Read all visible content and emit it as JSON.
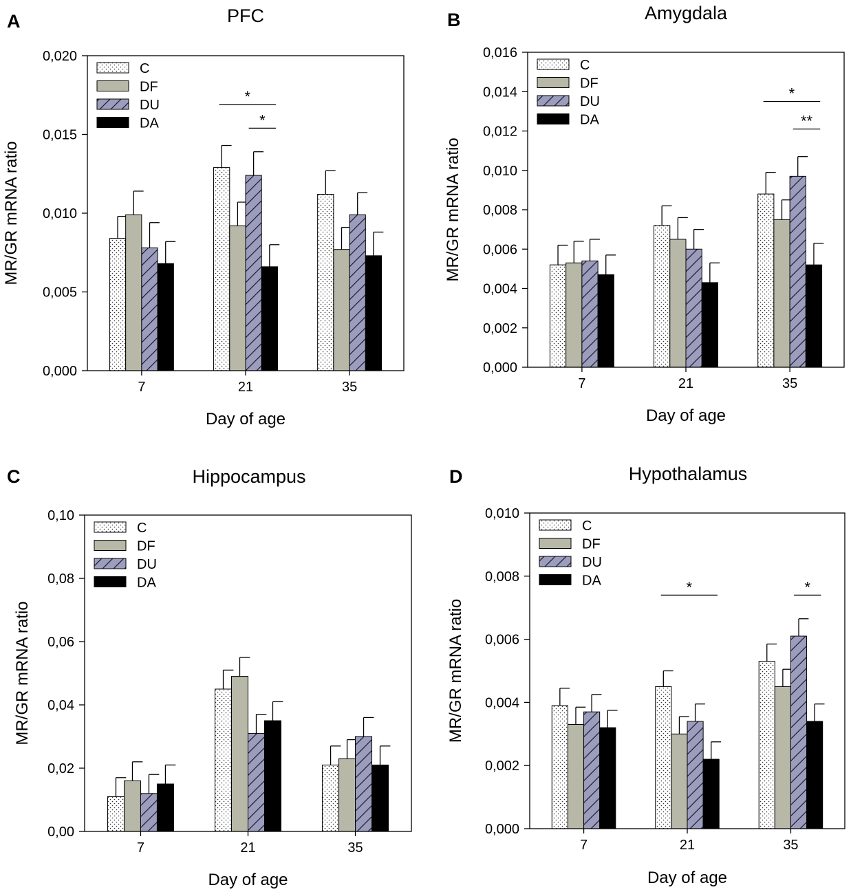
{
  "chart_data": [
    {
      "type": "bar",
      "panel": "A",
      "title": "PFC",
      "xlabel": "Day of age",
      "ylabel": "MR/GR mRNA ratio",
      "ylim": [
        0,
        0.02
      ],
      "yticks": [
        0,
        0.005,
        0.01,
        0.015,
        0.02
      ],
      "ytick_labels": [
        "0,000",
        "0,005",
        "0,010",
        "0,015",
        "0,020"
      ],
      "categories": [
        "7",
        "21",
        "35"
      ],
      "series": [
        {
          "name": "C",
          "values": [
            0.0084,
            0.0129,
            0.0112
          ],
          "errors": [
            0.0014,
            0.0014,
            0.0015
          ]
        },
        {
          "name": "DF",
          "values": [
            0.0099,
            0.0092,
            0.0077
          ],
          "errors": [
            0.0015,
            0.0015,
            0.0014
          ]
        },
        {
          "name": "DU",
          "values": [
            0.0078,
            0.0124,
            0.0099
          ],
          "errors": [
            0.0016,
            0.0015,
            0.0014
          ]
        },
        {
          "name": "DA",
          "values": [
            0.0068,
            0.0066,
            0.0073
          ],
          "errors": [
            0.0014,
            0.0014,
            0.0015
          ]
        }
      ],
      "significance": [
        {
          "category": 1,
          "from_series": 0,
          "to_series": 3,
          "label": "*",
          "level": 0.0169
        },
        {
          "category": 1,
          "from_series": 2,
          "to_series": 3,
          "label": "*",
          "level": 0.0154
        }
      ],
      "legend_position": "top-left"
    },
    {
      "type": "bar",
      "panel": "B",
      "title": "Amygdala",
      "xlabel": "Day of age",
      "ylabel": "MR/GR mRNA ratio",
      "ylim": [
        0,
        0.016
      ],
      "yticks": [
        0,
        0.002,
        0.004,
        0.006,
        0.008,
        0.01,
        0.012,
        0.014,
        0.016
      ],
      "ytick_labels": [
        "0,000",
        "0,002",
        "0,004",
        "0,006",
        "0,008",
        "0,010",
        "0,012",
        "0,014",
        "0,016"
      ],
      "categories": [
        "7",
        "21",
        "35"
      ],
      "series": [
        {
          "name": "C",
          "values": [
            0.0052,
            0.0072,
            0.0088
          ],
          "errors": [
            0.001,
            0.001,
            0.0011
          ]
        },
        {
          "name": "DF",
          "values": [
            0.0053,
            0.0065,
            0.0075
          ],
          "errors": [
            0.0011,
            0.0011,
            0.001
          ]
        },
        {
          "name": "DU",
          "values": [
            0.0054,
            0.006,
            0.0097
          ],
          "errors": [
            0.0011,
            0.001,
            0.001
          ]
        },
        {
          "name": "DA",
          "values": [
            0.0047,
            0.0043,
            0.0052
          ],
          "errors": [
            0.001,
            0.001,
            0.0011
          ]
        }
      ],
      "significance": [
        {
          "category": 2,
          "from_series": 0,
          "to_series": 3,
          "label": "*",
          "level": 0.0135
        },
        {
          "category": 2,
          "from_series": 2,
          "to_series": 3,
          "label": "**",
          "level": 0.0121
        }
      ],
      "legend_position": "top-left"
    },
    {
      "type": "bar",
      "panel": "C",
      "title": "Hippocampus",
      "xlabel": "Day of age",
      "ylabel": "MR/GR mRNA ratio",
      "ylim": [
        0,
        0.1
      ],
      "yticks": [
        0,
        0.02,
        0.04,
        0.06,
        0.08,
        0.1
      ],
      "ytick_labels": [
        "0,00",
        "0,02",
        "0,04",
        "0,06",
        "0,08",
        "0,10"
      ],
      "categories": [
        "7",
        "21",
        "35"
      ],
      "series": [
        {
          "name": "C",
          "values": [
            0.011,
            0.045,
            0.021
          ],
          "errors": [
            0.006,
            0.006,
            0.006
          ]
        },
        {
          "name": "DF",
          "values": [
            0.016,
            0.049,
            0.023
          ],
          "errors": [
            0.006,
            0.006,
            0.006
          ]
        },
        {
          "name": "DU",
          "values": [
            0.012,
            0.031,
            0.03
          ],
          "errors": [
            0.006,
            0.006,
            0.006
          ]
        },
        {
          "name": "DA",
          "values": [
            0.015,
            0.035,
            0.021
          ],
          "errors": [
            0.006,
            0.006,
            0.006
          ]
        }
      ],
      "significance": [],
      "legend_position": "top-left"
    },
    {
      "type": "bar",
      "panel": "D",
      "title": "Hypothalamus",
      "xlabel": "Day of age",
      "ylabel": "MR/GR mRNA ratio",
      "ylim": [
        0,
        0.01
      ],
      "yticks": [
        0,
        0.002,
        0.004,
        0.006,
        0.008,
        0.01
      ],
      "ytick_labels": [
        "0,000",
        "0,002",
        "0,004",
        "0,006",
        "0,008",
        "0,010"
      ],
      "categories": [
        "7",
        "21",
        "35"
      ],
      "series": [
        {
          "name": "C",
          "values": [
            0.0039,
            0.0045,
            0.0053
          ],
          "errors": [
            0.00055,
            0.0005,
            0.00055
          ]
        },
        {
          "name": "DF",
          "values": [
            0.0033,
            0.003,
            0.0045
          ],
          "errors": [
            0.00055,
            0.00055,
            0.00055
          ]
        },
        {
          "name": "DU",
          "values": [
            0.0037,
            0.0034,
            0.0061
          ],
          "errors": [
            0.00055,
            0.00055,
            0.00055
          ]
        },
        {
          "name": "DA",
          "values": [
            0.0032,
            0.0022,
            0.0034
          ],
          "errors": [
            0.00055,
            0.00055,
            0.00055
          ]
        }
      ],
      "significance": [
        {
          "category": 1,
          "from_series": 0,
          "to_series": 3,
          "label": "*",
          "level": 0.0074
        },
        {
          "category": 2,
          "from_series": 2,
          "to_series": 3,
          "label": "*",
          "level": 0.0074
        }
      ],
      "legend_position": "top-left"
    }
  ],
  "series_style": {
    "C": {
      "fill": "#ffffff",
      "pattern": "dots"
    },
    "DF": {
      "fill": "#b7b8a8",
      "pattern": "none"
    },
    "DU": {
      "fill": "#9c9dbd",
      "pattern": "hatch"
    },
    "DA": {
      "fill": "#000000",
      "pattern": "none"
    }
  }
}
